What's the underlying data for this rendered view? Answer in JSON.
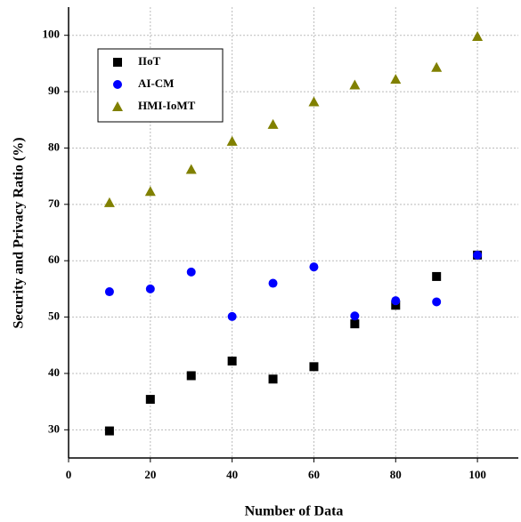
{
  "chart_data": {
    "type": "scatter",
    "x_label": "Number of Data",
    "y_label": "Security and Privacy Ratio (%)",
    "x": [
      10,
      20,
      30,
      40,
      50,
      60,
      70,
      80,
      90,
      100
    ],
    "series": [
      {
        "name": "IIoT",
        "color": "#000000",
        "marker": "square",
        "values": [
          29.8,
          35.4,
          39.6,
          42.2,
          39,
          41.2,
          48.8,
          52.1,
          57.2,
          61
        ]
      },
      {
        "name": "AI-CM",
        "color": "#0000ff",
        "marker": "circle",
        "values": [
          54.5,
          55,
          58,
          50.1,
          56,
          58.9,
          50.2,
          52.9,
          52.7,
          61
        ]
      },
      {
        "name": "HMI-IoMT",
        "color": "#808000",
        "marker": "triangle",
        "values": [
          70.3,
          72.3,
          76.2,
          81.2,
          84.2,
          88.2,
          91.2,
          92.2,
          94.3,
          99.8
        ]
      }
    ],
    "xlim": [
      0,
      110
    ],
    "xticks": [
      0,
      20,
      40,
      60,
      80,
      100
    ],
    "ylim": [
      25,
      105
    ],
    "yticks": [
      30,
      40,
      50,
      60,
      70,
      80,
      90,
      100
    ],
    "grid": true,
    "legend": "upper left"
  }
}
